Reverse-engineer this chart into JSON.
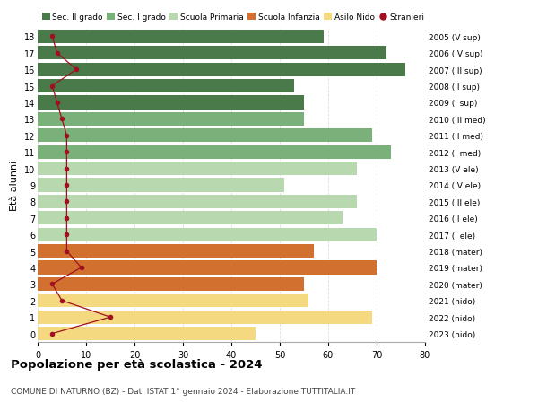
{
  "ages": [
    18,
    17,
    16,
    15,
    14,
    13,
    12,
    11,
    10,
    9,
    8,
    7,
    6,
    5,
    4,
    3,
    2,
    1,
    0
  ],
  "right_labels": [
    "2005 (V sup)",
    "2006 (IV sup)",
    "2007 (III sup)",
    "2008 (II sup)",
    "2009 (I sup)",
    "2010 (III med)",
    "2011 (II med)",
    "2012 (I med)",
    "2013 (V ele)",
    "2014 (IV ele)",
    "2015 (III ele)",
    "2016 (II ele)",
    "2017 (I ele)",
    "2018 (mater)",
    "2019 (mater)",
    "2020 (mater)",
    "2021 (nido)",
    "2022 (nido)",
    "2023 (nido)"
  ],
  "bar_values": [
    59,
    72,
    76,
    53,
    55,
    55,
    69,
    73,
    66,
    51,
    66,
    63,
    70,
    57,
    70,
    55,
    56,
    69,
    45
  ],
  "stranieri_values": [
    3,
    4,
    8,
    3,
    4,
    5,
    6,
    6,
    6,
    6,
    6,
    6,
    6,
    6,
    9,
    3,
    5,
    15,
    3
  ],
  "bar_colors": [
    "#4a7a4a",
    "#4a7a4a",
    "#4a7a4a",
    "#4a7a4a",
    "#4a7a4a",
    "#7ab07a",
    "#7ab07a",
    "#7ab07a",
    "#b8d8b0",
    "#b8d8b0",
    "#b8d8b0",
    "#b8d8b0",
    "#b8d8b0",
    "#d27030",
    "#d27030",
    "#d27030",
    "#f5d980",
    "#f5d980",
    "#f5d980"
  ],
  "legend_labels": [
    "Sec. II grado",
    "Sec. I grado",
    "Scuola Primaria",
    "Scuola Infanzia",
    "Asilo Nido",
    "Stranieri"
  ],
  "legend_colors": [
    "#4a7a4a",
    "#7ab07a",
    "#b8d8b0",
    "#d27030",
    "#f5d980",
    "#a01020"
  ],
  "title": "Popolazione per età scolastica - 2024",
  "subtitle": "COMUNE DI NATURNO (BZ) - Dati ISTAT 1° gennaio 2024 - Elaborazione TUTTITALIA.IT",
  "ylabel_left": "Età alunni",
  "xlim": [
    0,
    80
  ],
  "background_color": "#ffffff",
  "bar_height": 0.82,
  "grid_color": "#dddddd",
  "stranieri_line_color": "#a01020",
  "stranieri_dot_color": "#a01020"
}
